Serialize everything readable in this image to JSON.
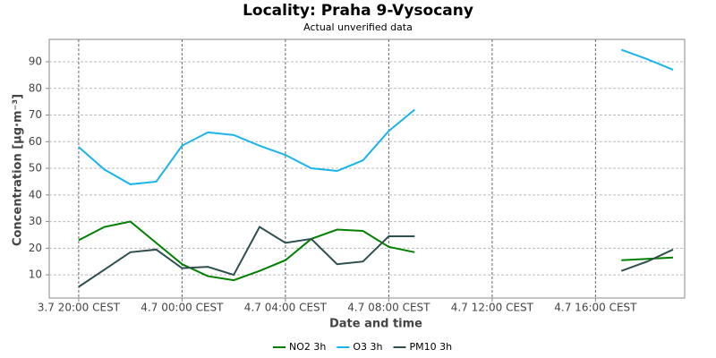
{
  "chart_data": {
    "type": "line",
    "title": "Locality: Praha 9-Vysocany",
    "subtitle": "Actual unverified data",
    "x_label": "Date and time",
    "y_label": "Concentration [µg·m⁻³]",
    "x": [
      0,
      1,
      2,
      3,
      4,
      5,
      6,
      7,
      8,
      9,
      10,
      11,
      12,
      13,
      14,
      15,
      16,
      17,
      18,
      19,
      20,
      21,
      22,
      23
    ],
    "series": [
      {
        "name": "NO2 3h",
        "color": "#008000",
        "values": [
          23,
          28,
          30,
          22,
          14,
          9.5,
          8,
          11.5,
          15.5,
          23.5,
          27,
          26.5,
          20.5,
          18.5,
          null,
          null,
          null,
          null,
          null,
          null,
          null,
          15.5,
          16,
          16.5
        ]
      },
      {
        "name": "O3 3h",
        "color": "#1ab4ec",
        "values": [
          58,
          49.5,
          44,
          45,
          58.5,
          63.5,
          62.5,
          58.5,
          55,
          50,
          49,
          53,
          64,
          72,
          null,
          null,
          null,
          null,
          null,
          null,
          null,
          94.5,
          91,
          87
        ]
      },
      {
        "name": "PM10 3h",
        "color": "#2f4f4f",
        "values": [
          5.5,
          12,
          18.5,
          19.5,
          12.5,
          13,
          10,
          28,
          22,
          23.5,
          14,
          15,
          24.5,
          24.5,
          null,
          null,
          null,
          null,
          null,
          null,
          null,
          11.5,
          15,
          19.5
        ]
      }
    ],
    "xlim": [
      -1.14,
      23.45
    ],
    "xticks": [
      {
        "value": 0,
        "label": "3.7 20:00 CEST"
      },
      {
        "value": 4,
        "label": "4.7 00:00 CEST"
      },
      {
        "value": 8,
        "label": "4.7 04:00 CEST"
      },
      {
        "value": 12,
        "label": "4.7 08:00 CEST"
      },
      {
        "value": 16,
        "label": "4.7 12:00 CEST"
      },
      {
        "value": 20,
        "label": "4.7 16:00 CEST"
      }
    ],
    "ylim": [
      1.3,
      98.4
    ],
    "yticks": [
      10,
      20,
      30,
      40,
      50,
      60,
      70,
      80,
      90
    ],
    "grid": true,
    "legend": "bottom"
  }
}
